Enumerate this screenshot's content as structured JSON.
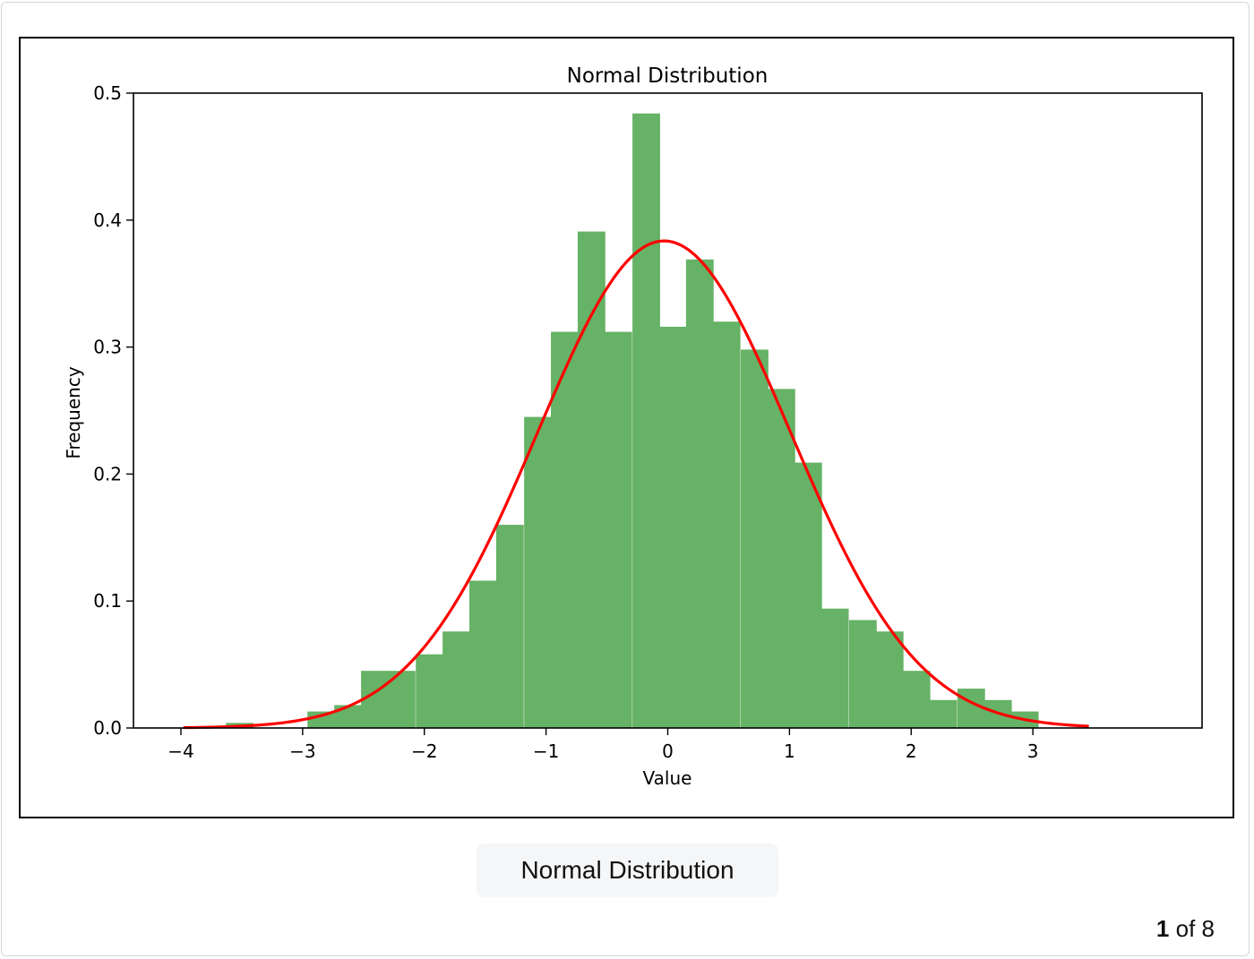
{
  "caption": "Normal Distribution",
  "pager": {
    "current": "1",
    "separator": "of",
    "total": "8"
  },
  "colors": {
    "bars": "#66b266",
    "curve": "#ff0000"
  },
  "chart_data": {
    "type": "bar",
    "title": "Normal Distribution",
    "xlabel": "Value",
    "ylabel": "Frequency",
    "xlim": [
      -4.39,
      4.39
    ],
    "ylim": [
      0,
      0.5
    ],
    "grid": false,
    "xticks": [
      -4,
      -3,
      -2,
      -1,
      0,
      1,
      2,
      3
    ],
    "xtick_labels": [
      "−4",
      "−3",
      "−2",
      "−1",
      "0",
      "1",
      "2",
      "3"
    ],
    "yticks": [
      0.0,
      0.1,
      0.2,
      0.3,
      0.4,
      0.5
    ],
    "ytick_labels": [
      "0.0",
      "0.1",
      "0.2",
      "0.3",
      "0.4",
      "0.5"
    ],
    "histogram": {
      "bin_width": 0.2225,
      "bins": [
        {
          "x0": -3.63,
          "value": 0.004
        },
        {
          "x0": -3.41,
          "value": 0.0
        },
        {
          "x0": -3.19,
          "value": 0.0
        },
        {
          "x0": -2.96,
          "value": 0.013
        },
        {
          "x0": -2.74,
          "value": 0.018
        },
        {
          "x0": -2.52,
          "value": 0.045
        },
        {
          "x0": -2.3,
          "value": 0.045
        },
        {
          "x0": -2.07,
          "value": 0.058
        },
        {
          "x0": -1.85,
          "value": 0.076
        },
        {
          "x0": -1.63,
          "value": 0.116
        },
        {
          "x0": -1.41,
          "value": 0.16
        },
        {
          "x0": -1.18,
          "value": 0.245
        },
        {
          "x0": -0.96,
          "value": 0.312
        },
        {
          "x0": -0.74,
          "value": 0.391
        },
        {
          "x0": -0.52,
          "value": 0.312
        },
        {
          "x0": -0.29,
          "value": 0.484
        },
        {
          "x0": -0.07,
          "value": 0.316
        },
        {
          "x0": 0.15,
          "value": 0.369
        },
        {
          "x0": 0.37,
          "value": 0.32
        },
        {
          "x0": 0.6,
          "value": 0.298
        },
        {
          "x0": 0.82,
          "value": 0.267
        },
        {
          "x0": 1.04,
          "value": 0.209
        },
        {
          "x0": 1.26,
          "value": 0.094
        },
        {
          "x0": 1.49,
          "value": 0.085
        },
        {
          "x0": 1.71,
          "value": 0.076
        },
        {
          "x0": 1.93,
          "value": 0.045
        },
        {
          "x0": 2.15,
          "value": 0.022
        },
        {
          "x0": 2.38,
          "value": 0.031
        },
        {
          "x0": 2.6,
          "value": 0.022
        },
        {
          "x0": 2.82,
          "value": 0.013
        }
      ]
    },
    "fit_curve": {
      "type": "normal_pdf",
      "mean": -0.03,
      "std": 1.04,
      "x_range": [
        -3.98,
        3.46
      ]
    }
  }
}
